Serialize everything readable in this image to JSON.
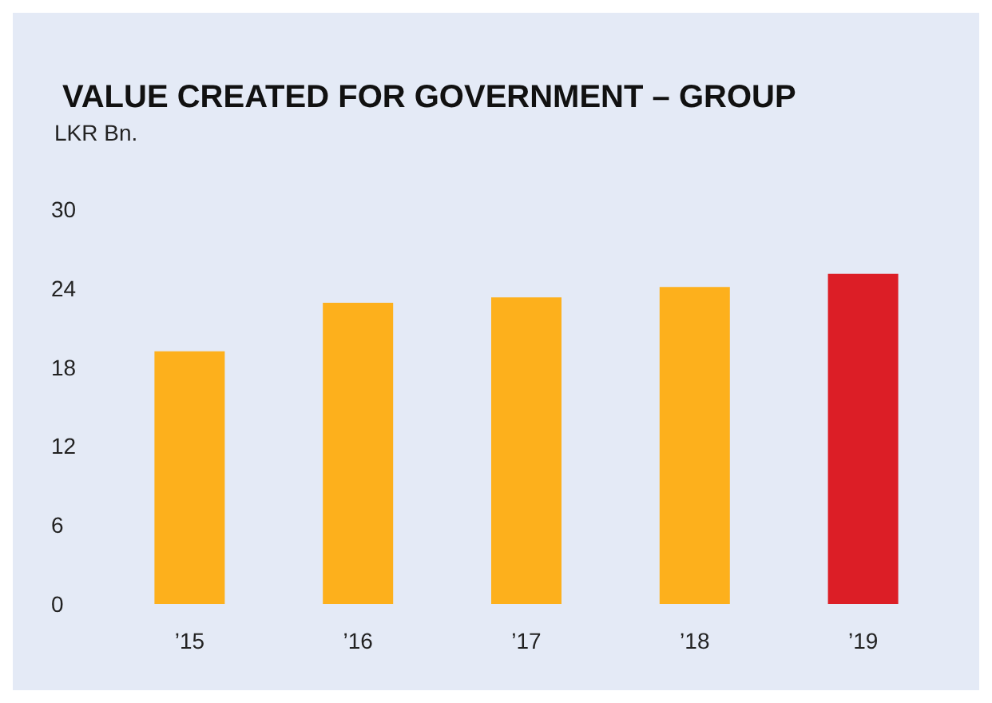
{
  "chart_data": {
    "type": "bar",
    "title": "VALUE CREATED FOR GOVERNMENT – GROUP",
    "ylabel": "LKR Bn.",
    "categories": [
      "’15",
      "’16",
      "’17",
      "’18",
      "’19"
    ],
    "values": [
      19.2,
      22.9,
      23.3,
      24.1,
      25.1
    ],
    "colors": [
      "#fdb01c",
      "#fdb01c",
      "#fdb01c",
      "#fdb01c",
      "#dc1e26"
    ],
    "ylim": [
      0,
      30
    ],
    "yticks": [
      0,
      6,
      12,
      18,
      24,
      30
    ],
    "grid": false
  }
}
